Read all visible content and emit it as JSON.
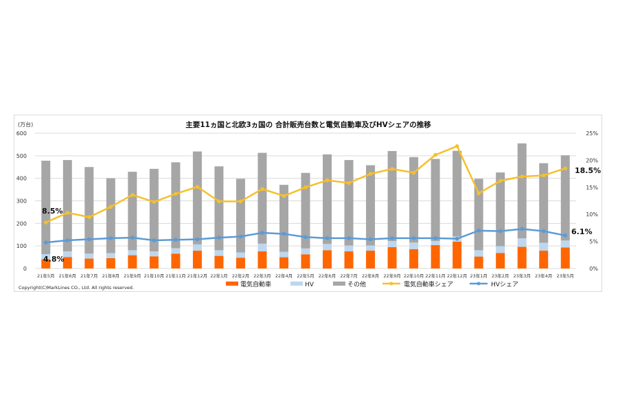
{
  "chart_data": {
    "type": "bar",
    "title": "主要11ヵ国と北欧3ヵ国の 合計販売台数と電気自動車及びHVシェアの推移",
    "ylabel": "(万台)",
    "ylim": [
      0,
      600
    ],
    "y_ticks": [
      "0",
      "100",
      "200",
      "300",
      "400",
      "500",
      "600"
    ],
    "y2lim": [
      0,
      25
    ],
    "y2_ticks": [
      "0%",
      "5%",
      "10%",
      "15%",
      "20%",
      "25%"
    ],
    "grid": true,
    "legend": "bottom",
    "categories": [
      "21年5月",
      "21年6月",
      "21年7月",
      "21年8月",
      "21年9月",
      "21年10月",
      "21年11月",
      "21年12月",
      "22年1月",
      "22年2月",
      "22年3月",
      "22年4月",
      "22年5月",
      "22年6月",
      "22年7月",
      "22年8月",
      "22年9月",
      "22年10月",
      "22年11月",
      "22年12月",
      "23年1月",
      "23年2月",
      "23年3月",
      "23年4月",
      "23年5月"
    ],
    "series": [
      {
        "name": "電気自動車",
        "kind": "bar",
        "axis": "left",
        "color": "#ff6600",
        "values": [
          41,
          51,
          44,
          46,
          59,
          54,
          66,
          79,
          56,
          48,
          76,
          50,
          63,
          81,
          76,
          79,
          95,
          86,
          104,
          119,
          53,
          69,
          96,
          79,
          93
        ]
      },
      {
        "name": "HV",
        "kind": "bar",
        "axis": "left",
        "color": "#bdd7ee",
        "values": [
          23,
          25,
          22,
          22,
          22,
          22,
          24,
          28,
          25,
          23,
          34,
          24,
          26,
          28,
          26,
          23,
          27,
          29,
          18,
          23,
          28,
          30,
          38,
          35,
          31
        ]
      },
      {
        "name": "その他",
        "kind": "bar",
        "axis": "left",
        "color": "#a6a6a6",
        "values": [
          414,
          405,
          384,
          332,
          348,
          366,
          381,
          412,
          372,
          327,
          403,
          297,
          335,
          397,
          379,
          356,
          399,
          379,
          364,
          380,
          317,
          327,
          421,
          353,
          378
        ]
      },
      {
        "name": "電気自動車シェア",
        "kind": "line",
        "axis": "right",
        "color": "#f5c02a",
        "values": [
          8.5,
          10.3,
          9.5,
          11.4,
          13.6,
          12.3,
          13.8,
          15.1,
          12.4,
          12.4,
          14.7,
          13.4,
          15.0,
          16.3,
          15.8,
          17.5,
          18.4,
          17.7,
          21.0,
          22.6,
          13.9,
          16.2,
          17.0,
          17.2,
          18.5
        ]
      },
      {
        "name": "HVシェア",
        "kind": "line",
        "axis": "right",
        "color": "#5b9bd5",
        "values": [
          4.8,
          5.2,
          5.4,
          5.6,
          5.7,
          5.2,
          5.3,
          5.4,
          5.7,
          5.9,
          6.6,
          6.4,
          5.8,
          5.6,
          5.6,
          5.4,
          5.6,
          5.6,
          5.6,
          5.5,
          7.0,
          6.9,
          7.3,
          6.9,
          6.1
        ]
      }
    ],
    "annotations": [
      "8.5%",
      "4.8%",
      "18.5%",
      "6.1%"
    ],
    "copyright": "Copyright(C)MarkLines CO., Ltd. All rights reserved."
  }
}
